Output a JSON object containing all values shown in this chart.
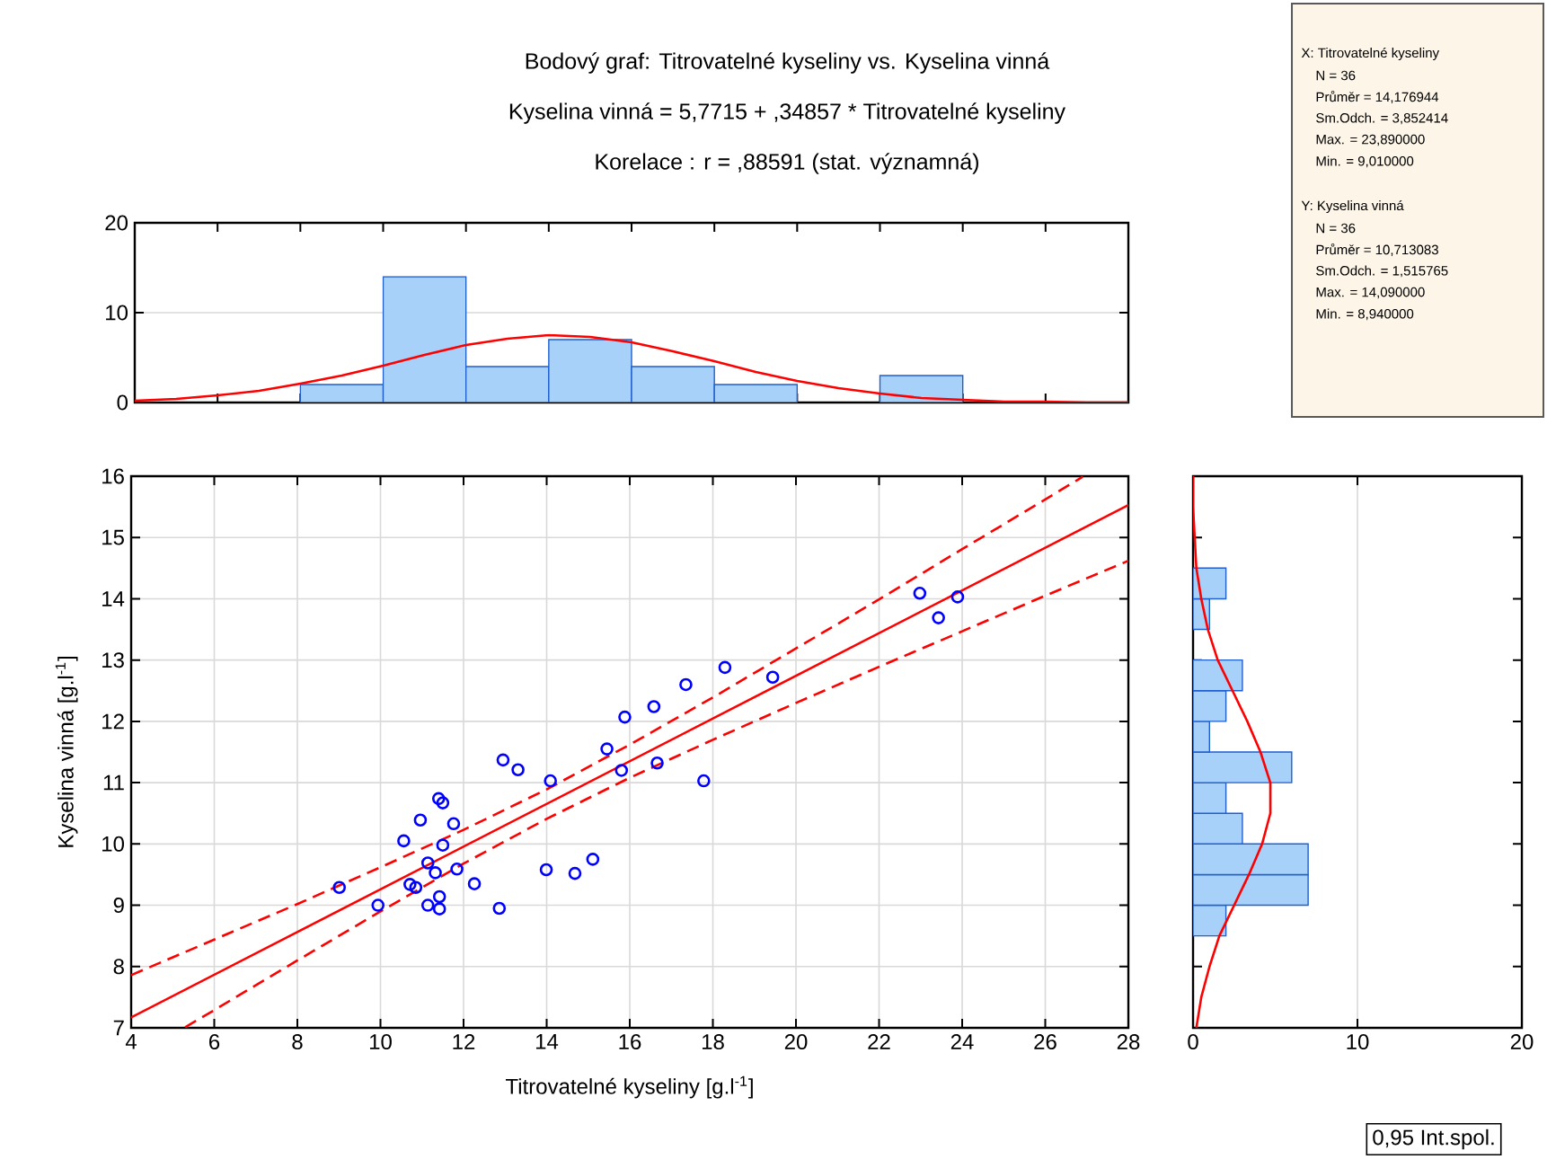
{
  "chart_data": [
    {
      "type": "histogram",
      "title": "Bodový graf: Titrovatelné kyseliny vs. Kyselina vinná",
      "subtitle": "Kyselina vinná = 5,7715 + ,34857 * Titrovatelné kyseliny",
      "annotations": [
        "Korelace :   r = ,88591 (stat. významná)"
      ],
      "xlim": [
        4,
        28
      ],
      "xticks": [
        4,
        6,
        8,
        10,
        12,
        14,
        16,
        18,
        20,
        22,
        24,
        26,
        28
      ],
      "ylim": [
        0,
        20
      ],
      "yticks": [
        0,
        10,
        20
      ],
      "tick_labels": "y",
      "grid": "y",
      "series": [
        {
          "type": "histogram",
          "bins": [
            8,
            10,
            12,
            14,
            16,
            18,
            20,
            22,
            24
          ],
          "values": [
            2,
            14,
            4,
            7,
            4,
            2,
            0,
            3
          ],
          "color": "#a8d1fa"
        },
        {
          "type": "line",
          "x": [
            4,
            5,
            6,
            7,
            8,
            9,
            10,
            11,
            12,
            13,
            14,
            15,
            16,
            17,
            18,
            19,
            20,
            21,
            22,
            23,
            24,
            25,
            26,
            27,
            28
          ],
          "values": [
            0.2,
            0.4,
            0.8,
            1.3,
            2.1,
            3.0,
            4.1,
            5.3,
            6.4,
            7.1,
            7.5,
            7.3,
            6.7,
            5.7,
            4.6,
            3.4,
            2.4,
            1.6,
            1.0,
            0.5,
            0.3,
            0.1,
            0.1,
            0.0,
            0.0
          ],
          "color": "#ff0000"
        }
      ]
    },
    {
      "type": "scatter",
      "annotations": [
        "0,95 Int.spol."
      ],
      "xlabel": "Titrovatelné kyseliny [g.l$^{-1}$]",
      "ylabel": "Kyselina vinná [g.l$^{-1}$]",
      "xlim": [
        4,
        28
      ],
      "xticks": [
        4,
        6,
        8,
        10,
        12,
        14,
        16,
        18,
        20,
        22,
        24,
        26,
        28
      ],
      "ylim": [
        7,
        16
      ],
      "yticks": [
        7,
        8,
        9,
        10,
        11,
        12,
        13,
        14,
        15,
        16
      ],
      "grid": true,
      "series": [
        {
          "type": "scatter",
          "marker": "circle",
          "color": "#0000ff",
          "x": [
            9.01,
            9.94,
            10.56,
            10.71,
            10.85,
            10.96,
            11.14,
            11.14,
            11.32,
            11.4,
            11.5,
            11.42,
            11.42,
            11.5,
            11.76,
            11.84,
            12.26,
            12.86,
            12.95,
            13.31,
            13.99,
            14.09,
            14.68,
            15.11,
            15.45,
            15.8,
            15.88,
            16.58,
            16.66,
            17.35,
            17.78,
            18.29,
            19.44,
            22.98,
            23.43,
            23.89
          ],
          "values": [
            9.29,
            9.0,
            10.05,
            9.34,
            9.29,
            10.39,
            9.69,
            9.0,
            9.53,
            10.74,
            10.67,
            9.14,
            8.94,
            9.98,
            10.33,
            9.59,
            9.35,
            8.95,
            11.37,
            11.21,
            9.58,
            11.03,
            9.52,
            9.75,
            11.55,
            11.2,
            12.07,
            12.24,
            11.32,
            12.6,
            11.03,
            12.88,
            12.72,
            14.09,
            13.69,
            14.03
          ]
        },
        {
          "type": "line",
          "color": "#ff0000",
          "line_style": "solid",
          "x": [
            4,
            28
          ],
          "values": [
            7.17,
            15.53
          ]
        },
        {
          "type": "line",
          "color": "#ff0000",
          "line_style": "dashed",
          "x": [
            4,
            6,
            8,
            10,
            12,
            14,
            16,
            18,
            20,
            22,
            24,
            26,
            26.9
          ],
          "values": [
            7.86,
            8.44,
            9.02,
            9.62,
            10.23,
            10.89,
            11.62,
            12.39,
            13.19,
            13.99,
            14.81,
            15.62,
            15.99
          ]
        },
        {
          "type": "line",
          "color": "#ff0000",
          "line_style": "dashed",
          "x": [
            5.3,
            6,
            8,
            10,
            12,
            14,
            16,
            18,
            20,
            22,
            24,
            26,
            28
          ],
          "values": [
            7.01,
            7.29,
            8.1,
            8.9,
            9.68,
            10.41,
            11.08,
            11.7,
            12.3,
            12.89,
            13.47,
            14.05,
            14.62
          ]
        }
      ]
    },
    {
      "type": "histogram",
      "orientation": "horizontal",
      "xlim": [
        0,
        20
      ],
      "xticks": [
        0,
        10,
        20
      ],
      "ylim": [
        7,
        16
      ],
      "yticks": [
        7,
        8,
        9,
        10,
        11,
        12,
        13,
        14,
        15,
        16
      ],
      "tick_labels": "x",
      "grid": "x",
      "series": [
        {
          "type": "histogram",
          "bins": [
            8.5,
            9,
            9.5,
            10,
            10.5,
            11,
            11.5,
            12,
            12.5,
            13,
            13.5,
            14,
            14.5
          ],
          "values": [
            2,
            7,
            7,
            3,
            2,
            6,
            1,
            2,
            3,
            0,
            1,
            2
          ],
          "color": "#a8d1fa"
        },
        {
          "type": "line",
          "x": [
            7,
            7.5,
            8,
            8.5,
            9,
            9.5,
            10,
            10.5,
            11,
            11.5,
            12,
            12.5,
            13,
            13.5,
            14,
            14.5,
            15,
            15.5,
            16
          ],
          "values": [
            0.2,
            0.5,
            1.0,
            1.6,
            2.5,
            3.4,
            4.2,
            4.7,
            4.7,
            4.1,
            3.3,
            2.4,
            1.5,
            0.9,
            0.5,
            0.2,
            0.1,
            0.0,
            0.0
          ],
          "color": "#ff0000"
        }
      ]
    },
    {
      "type": "other",
      "annotations": [
        "X: Titrovatelné kyseliny",
        "N = 36",
        "Průměr = 14,176944",
        "Sm.Odch. = 3,852414",
        "Max. = 23,890000",
        "Min. = 9,010000",
        "Y: Kyselina vinná",
        "N = 36",
        "Průměr = 10,713083",
        "Sm.Odch. = 1,515765",
        "Max. = 14,090000",
        "Min. = 8,940000"
      ]
    }
  ]
}
